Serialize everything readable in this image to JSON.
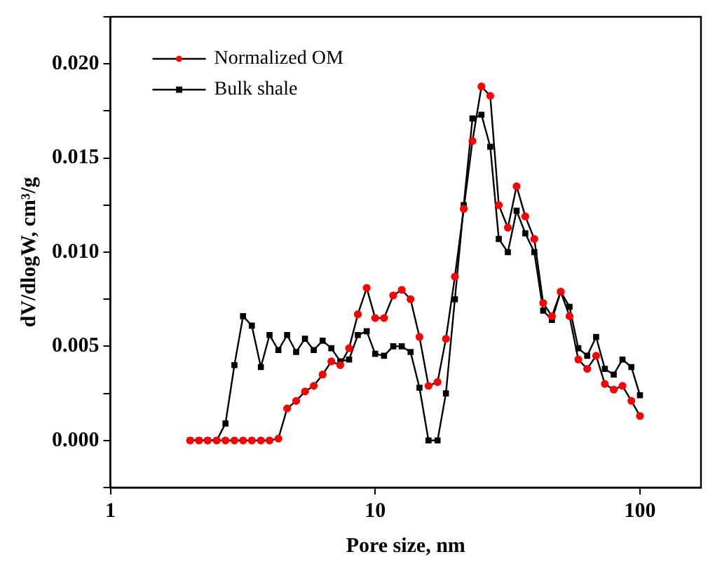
{
  "chart_data": {
    "type": "line",
    "xlabel": "Pore size, nm",
    "ylabel": "dV/dlogW, cm³/g",
    "log": "x",
    "legend": "top left",
    "grid": false,
    "x": [
      2.0,
      2.16,
      2.33,
      2.52,
      2.72,
      2.94,
      3.17,
      3.42,
      3.7,
      3.99,
      4.31,
      4.65,
      5.03,
      5.43,
      5.86,
      6.33,
      6.83,
      7.38,
      7.97,
      8.6,
      9.29,
      10.0,
      10.8,
      11.7,
      12.6,
      13.6,
      14.7,
      15.9,
      17.2,
      18.5,
      20.0,
      21.6,
      23.3,
      25.2,
      27.2,
      29.3,
      31.7,
      34.2,
      36.9,
      39.9,
      43.1,
      46.5,
      50.2,
      54.2,
      58.5,
      63.2,
      68.3,
      73.7,
      79.6,
      85.9,
      92.8,
      100
    ],
    "series": [
      {
        "name": "Normalized OM",
        "color": "#ff0000",
        "marker": "circle",
        "values": [
          0,
          0,
          0,
          0,
          0,
          0,
          0,
          0,
          0,
          0,
          0.0001,
          0.0017,
          0.0021,
          0.0026,
          0.0029,
          0.0035,
          0.0042,
          0.004,
          0.0049,
          0.0067,
          0.0081,
          0.0065,
          0.0065,
          0.0077,
          0.008,
          0.0075,
          0.0055,
          0.0029,
          0.0031,
          0.0054,
          0.0087,
          0.0123,
          0.0159,
          0.0188,
          0.0183,
          0.0125,
          0.0113,
          0.0135,
          0.0119,
          0.0107,
          0.0073,
          0.0066,
          0.0079,
          0.0066,
          0.0043,
          0.0038,
          0.0045,
          0.003,
          0.0027,
          0.0029,
          0.0021,
          0.0013
        ]
      },
      {
        "name": "Bulk shale",
        "color": "#000000",
        "marker": "square",
        "values": [
          0,
          0,
          0,
          0,
          0.0009,
          0.004,
          0.0066,
          0.0061,
          0.0039,
          0.0056,
          0.0048,
          0.0056,
          0.0047,
          0.0054,
          0.0048,
          0.0053,
          0.0049,
          0.0042,
          0.0043,
          0.0056,
          0.0058,
          0.0046,
          0.0045,
          0.005,
          0.005,
          0.0047,
          0.0028,
          0,
          0,
          0.0025,
          0.0075,
          0.0125,
          0.0171,
          0.0173,
          0.0156,
          0.0107,
          0.01,
          0.0122,
          0.011,
          0.01,
          0.0069,
          0.0064,
          0.0079,
          0.0071,
          0.0049,
          0.0045,
          0.0055,
          0.0038,
          0.0035,
          0.0043,
          0.0039,
          0.0024
        ]
      }
    ],
    "xlim": [
      1,
      170
    ],
    "xticks": [
      1,
      10,
      100
    ],
    "ylim": [
      -0.0025,
      0.0225
    ],
    "yticks": [
      {
        "value": -0.0025,
        "label": null
      },
      "0.000",
      {
        "value": 0.0025,
        "label": null
      },
      {
        "value": 0.005,
        "label": "0.005"
      },
      {
        "value": 0.0075,
        "label": null
      },
      {
        "value": 0.01,
        "label": "0.010"
      },
      {
        "value": 0.0125,
        "label": null
      },
      {
        "value": 0.015,
        "label": "0.015"
      },
      {
        "value": 0.0175,
        "label": null
      },
      {
        "value": 0.02,
        "label": "0.020"
      },
      {
        "value": 0.0225,
        "label": null
      }
    ]
  }
}
